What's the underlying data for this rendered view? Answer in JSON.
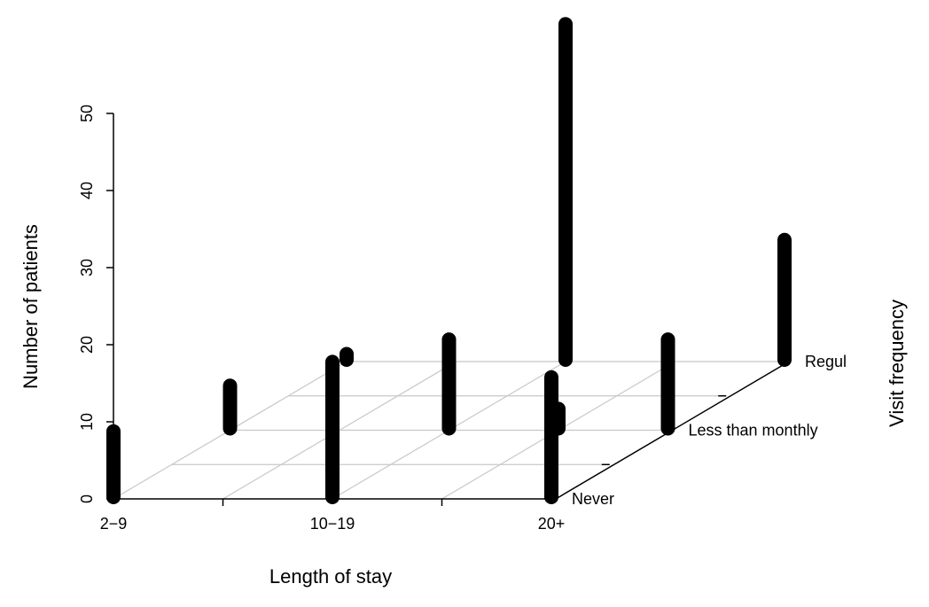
{
  "chart_data": {
    "type": "bar",
    "variant": "3d-histogram",
    "title": "",
    "xlabel": "Length of stay",
    "ylabel": "Number of patients",
    "zlabel": "Visit frequency",
    "categories": [
      "2−9",
      "10−19",
      "20+"
    ],
    "depth_categories": [
      "Never",
      "Less than monthly",
      "Regul"
    ],
    "ylim": [
      0,
      50
    ],
    "yticks": [
      "0",
      "10",
      "20",
      "30",
      "40",
      "50"
    ],
    "grid": true,
    "series": [
      {
        "name": "Never",
        "values": [
          9,
          18,
          16
        ]
      },
      {
        "name": "Less than monthly",
        "values": [
          6,
          12,
          12
        ]
      },
      {
        "name": "Regul",
        "values": [
          0,
          44,
          16
        ]
      }
    ],
    "extra_bars": [
      {
        "x_index": 3,
        "depth_index": 2,
        "value": 3
      }
    ]
  }
}
